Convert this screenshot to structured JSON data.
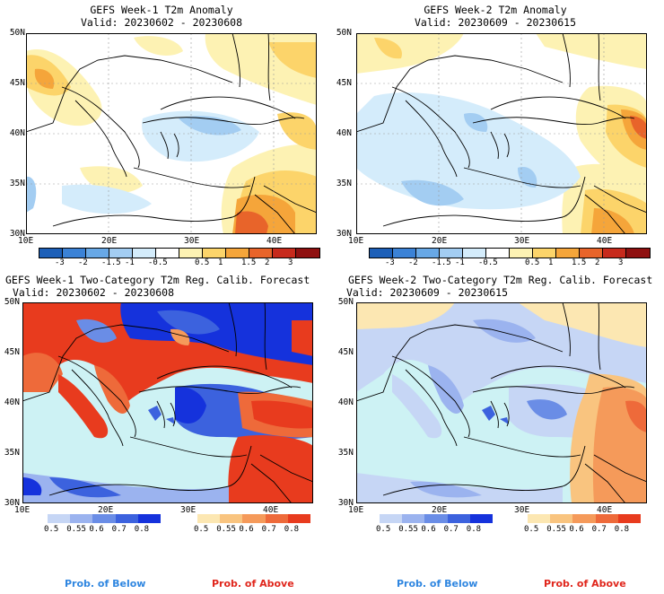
{
  "panels": [
    {
      "title": "GEFS Week-1 T2m Anomaly",
      "valid": "Valid: 20230602 - 20230608"
    },
    {
      "title": "GEFS Week-2 T2m Anomaly",
      "valid": "Valid: 20230609 - 20230615"
    },
    {
      "title": "GEFS Week-1 Two-Category T2m Reg. Calib. Forecast",
      "valid": "Valid: 20230602 - 20230608"
    },
    {
      "title": "GEFS Week-2 Two-Category T2m Reg. Calib. Forecast",
      "valid": "Valid: 20230609 - 20230615"
    }
  ],
  "axes": {
    "lat_labels": [
      "50N",
      "45N",
      "40N",
      "35N",
      "30N"
    ],
    "lon_labels": [
      "10E",
      "20E",
      "30E",
      "40E"
    ]
  },
  "anomaly_colorbar": {
    "labels": [
      "-3",
      "-2",
      "-1.5",
      "-1",
      "-0.5",
      "0.5",
      "1",
      "1.5",
      "2",
      "3"
    ],
    "colors": [
      "#1c5fb8",
      "#3b82d6",
      "#68a8e6",
      "#a3cdf2",
      "#d4ecfb",
      "#ffffff",
      "#fdf2b3",
      "#fcd46a",
      "#f5a53a",
      "#e8642a",
      "#c72a1c",
      "#8f1010"
    ]
  },
  "prob_colorbar": {
    "below_labels": [
      "0.5",
      "0.55",
      "0.6",
      "0.7",
      "0.8"
    ],
    "above_labels": [
      "0.5",
      "0.55",
      "0.6",
      "0.7",
      "0.8"
    ],
    "below_colors": [
      "#c6d6f5",
      "#9bb3ef",
      "#6a8de6",
      "#3c62de",
      "#1532dc"
    ],
    "above_colors": [
      "#fce7b2",
      "#f9c47f",
      "#f59a5a",
      "#ee6a3a",
      "#e83b1e"
    ],
    "below_caption": "Prob. of Below",
    "above_caption": "Prob. of Above",
    "below_caption_color": "#2f86e0",
    "above_caption_color": "#e0261c"
  },
  "colors": {
    "sea": "#cdf2f4",
    "frame": "#000000"
  }
}
